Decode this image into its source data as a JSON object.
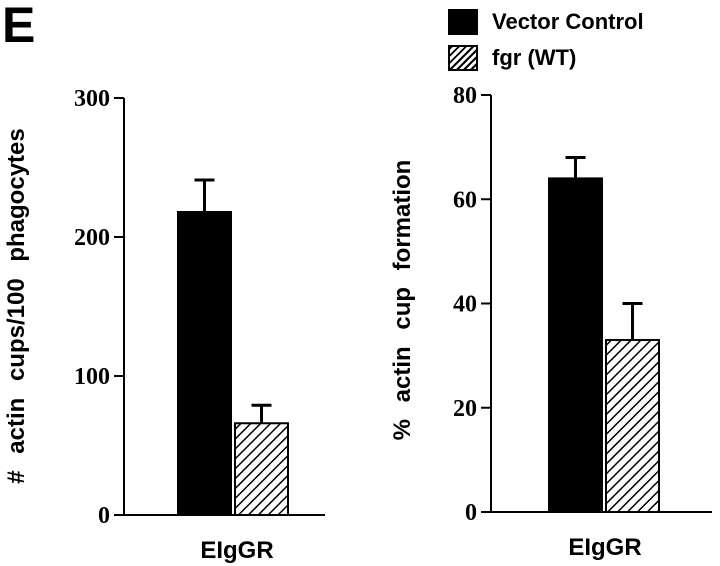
{
  "panel_letter": "E",
  "legend": [
    {
      "label": "Vector Control",
      "pattern": "solid"
    },
    {
      "label": "fgr (WT)",
      "pattern": "hatched"
    }
  ],
  "chart_data": [
    {
      "type": "bar",
      "categories": [
        "EIgGR"
      ],
      "series": [
        {
          "name": "Vector Control",
          "values": [
            218
          ],
          "errors": [
            23
          ]
        },
        {
          "name": "fgr (WT)",
          "values": [
            66
          ],
          "errors": [
            13
          ]
        }
      ],
      "title": "",
      "xlabel": "EIgGR",
      "ylabel": "# actin cups/100 phagocytes",
      "ylim": [
        0,
        300
      ],
      "yticks": [
        0,
        100,
        200,
        300
      ]
    },
    {
      "type": "bar",
      "categories": [
        "EIgGR"
      ],
      "series": [
        {
          "name": "Vector Control",
          "values": [
            64
          ],
          "errors": [
            4
          ]
        },
        {
          "name": "fgr (WT)",
          "values": [
            33
          ],
          "errors": [
            7
          ]
        }
      ],
      "title": "",
      "xlabel": "EIgGR",
      "ylabel": "% actin cup formation",
      "ylim": [
        0,
        80
      ],
      "yticks": [
        0,
        20,
        40,
        60,
        80
      ]
    }
  ]
}
